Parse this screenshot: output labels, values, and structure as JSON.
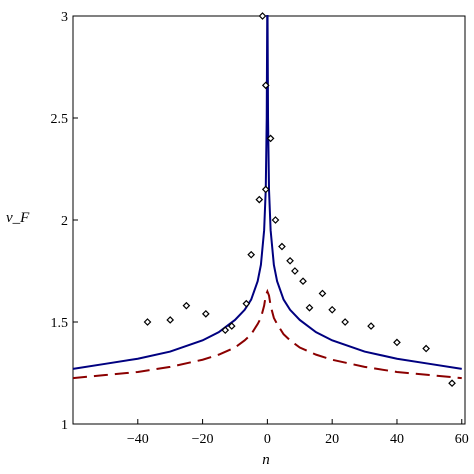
{
  "chart_data": {
    "type": "line",
    "title": "",
    "xlabel": "n",
    "ylabel": "v_F",
    "xlim": [
      -60,
      61
    ],
    "ylim": [
      1,
      3
    ],
    "grid": false,
    "legend": "none",
    "x_ticks": [
      -40,
      -20,
      0,
      20,
      40,
      60
    ],
    "x_tick_labels": [
      "−40",
      "−20",
      "0",
      "20",
      "40",
      "60"
    ],
    "y_ticks": [
      1,
      1.5,
      2,
      2.5,
      3
    ],
    "y_tick_labels": [
      "1",
      "1.5",
      "2",
      "2.5",
      "3"
    ],
    "series": [
      {
        "style": "solid",
        "color": "#000080",
        "points": [
          [
            -60,
            1.27
          ],
          [
            -50,
            1.295
          ],
          [
            -40,
            1.32
          ],
          [
            -30,
            1.355
          ],
          [
            -20,
            1.41
          ],
          [
            -15,
            1.45
          ],
          [
            -10,
            1.51
          ],
          [
            -7,
            1.56
          ],
          [
            -5,
            1.61
          ],
          [
            -3,
            1.7
          ],
          [
            -2,
            1.78
          ],
          [
            -1,
            1.95
          ],
          [
            -0.5,
            2.15
          ],
          [
            -0.2,
            2.5
          ],
          [
            -0.05,
            3.0
          ],
          [
            0.05,
            3.0
          ],
          [
            0.2,
            2.5
          ],
          [
            0.5,
            2.15
          ],
          [
            1,
            1.95
          ],
          [
            2,
            1.78
          ],
          [
            3,
            1.7
          ],
          [
            5,
            1.61
          ],
          [
            7,
            1.56
          ],
          [
            10,
            1.51
          ],
          [
            15,
            1.45
          ],
          [
            20,
            1.41
          ],
          [
            30,
            1.355
          ],
          [
            40,
            1.32
          ],
          [
            50,
            1.295
          ],
          [
            60,
            1.27
          ]
        ]
      },
      {
        "style": "dashed",
        "color": "#8b0000",
        "points": [
          [
            -60,
            1.225
          ],
          [
            -50,
            1.24
          ],
          [
            -40,
            1.255
          ],
          [
            -30,
            1.28
          ],
          [
            -20,
            1.315
          ],
          [
            -15,
            1.34
          ],
          [
            -10,
            1.375
          ],
          [
            -7,
            1.41
          ],
          [
            -5,
            1.44
          ],
          [
            -3,
            1.49
          ],
          [
            -2,
            1.52
          ],
          [
            -1,
            1.58
          ],
          [
            -0.5,
            1.63
          ],
          [
            0,
            1.65
          ],
          [
            0.5,
            1.63
          ],
          [
            1,
            1.58
          ],
          [
            2,
            1.52
          ],
          [
            3,
            1.49
          ],
          [
            5,
            1.44
          ],
          [
            7,
            1.41
          ],
          [
            10,
            1.375
          ],
          [
            15,
            1.34
          ],
          [
            20,
            1.315
          ],
          [
            30,
            1.28
          ],
          [
            40,
            1.255
          ],
          [
            50,
            1.24
          ],
          [
            60,
            1.225
          ]
        ]
      },
      {
        "style": "markers",
        "marker": "diamond",
        "color": "#000000",
        "points": [
          [
            -37,
            1.5
          ],
          [
            -30,
            1.51
          ],
          [
            -25,
            1.58
          ],
          [
            -19,
            1.54
          ],
          [
            -13,
            1.46
          ],
          [
            -11,
            1.48
          ],
          [
            -6.5,
            1.59
          ],
          [
            -5,
            1.83
          ],
          [
            -2.5,
            2.1
          ],
          [
            -1.5,
            3.0
          ],
          [
            -0.5,
            2.66
          ],
          [
            -0.5,
            2.15
          ],
          [
            1,
            2.4
          ],
          [
            2.5,
            2.0
          ],
          [
            4.5,
            1.87
          ],
          [
            7,
            1.8
          ],
          [
            8.5,
            1.75
          ],
          [
            11,
            1.7
          ],
          [
            13,
            1.57
          ],
          [
            17,
            1.64
          ],
          [
            20,
            1.56
          ],
          [
            24,
            1.5
          ],
          [
            32,
            1.48
          ],
          [
            40,
            1.4
          ],
          [
            49,
            1.37
          ],
          [
            57,
            1.2
          ]
        ]
      }
    ]
  }
}
